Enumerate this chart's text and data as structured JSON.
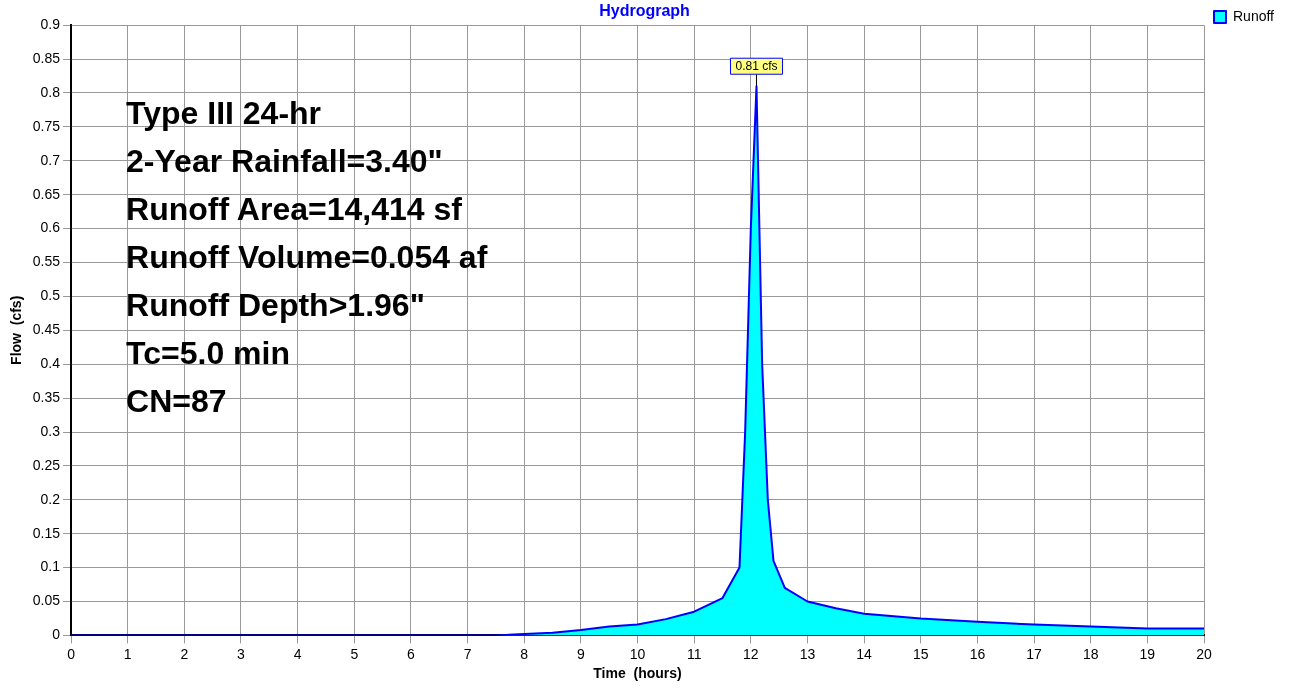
{
  "chart_data": {
    "type": "area",
    "title": "Hydrograph",
    "xlabel": "Time  (hours)",
    "ylabel": "Flow  (cfs)",
    "x": [
      0,
      1,
      2,
      3,
      4,
      5,
      6,
      7,
      7.5,
      8,
      8.5,
      9,
      9.5,
      10,
      10.5,
      11,
      11.5,
      11.8,
      11.9,
      12,
      12.1,
      12.2,
      12.3,
      12.4,
      12.6,
      13,
      13.5,
      14,
      15,
      16,
      17,
      18,
      19,
      20
    ],
    "series": [
      {
        "name": "Runoff",
        "color": "#00ffff",
        "values": [
          0,
          0,
          0,
          0,
          0,
          0,
          0,
          0,
          0,
          0.002,
          0.004,
          0.008,
          0.013,
          0.016,
          0.024,
          0.035,
          0.055,
          0.1,
          0.3,
          0.6,
          0.81,
          0.4,
          0.2,
          0.11,
          0.07,
          0.05,
          0.04,
          0.032,
          0.025,
          0.02,
          0.016,
          0.013,
          0.01,
          0.01
        ]
      }
    ],
    "xlim": [
      0,
      20
    ],
    "xticks": [
      0,
      1,
      2,
      3,
      4,
      5,
      6,
      7,
      8,
      9,
      10,
      11,
      12,
      13,
      14,
      15,
      16,
      17,
      18,
      19,
      20
    ],
    "ylim": [
      0,
      0.9
    ],
    "yticks": [
      0,
      0.05,
      0.1,
      0.15,
      0.2,
      0.25,
      0.3,
      0.35,
      0.4,
      0.45,
      0.5,
      0.55,
      0.6,
      0.65,
      0.7,
      0.75,
      0.8,
      0.85,
      0.9
    ],
    "grid": true,
    "legend": "top right",
    "annotations": [
      {
        "text": "0.81 cfs",
        "x": 12.1,
        "y": 0.81
      },
      "Type III 24-hr",
      "2-Year Rainfall=3.40\"",
      "Runoff Area=14,414 sf",
      "Runoff Volume=0.054 af",
      "Runoff Depth>1.96\"",
      "Tc=5.0 min",
      "CN=87"
    ]
  }
}
